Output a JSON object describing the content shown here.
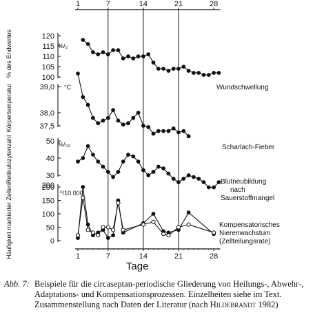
{
  "figure": {
    "x_axis_label": "Tage",
    "top_ticks": [
      "1",
      "7",
      "14",
      "21",
      "28"
    ],
    "bottom_ticks": [
      "1",
      "7",
      "14",
      "21",
      "28"
    ],
    "caption_label": "Abb. 7:",
    "caption_text": "Beispiele für die circaseptan-periodische Gliederung von Heilungs-, Abwehr-, Adaptations- und Kompensationsprozessen. Einzelheiten siehe im Text. Zusammenstellung nach Daten der Literatur (nach ",
    "caption_author": "Hildebrandt",
    "caption_year": "1982)"
  },
  "chart_data": [
    {
      "type": "line",
      "ylabel": "% des Endwertes",
      "unit": "%/₀",
      "yticks": [
        "120",
        "115",
        "110",
        "105",
        "100"
      ],
      "series": [
        {
          "name": "Wundschwellung",
          "x": [
            2,
            3,
            4,
            5,
            6,
            7,
            8,
            9,
            10,
            11,
            12,
            13,
            14,
            15,
            16,
            17,
            18,
            19,
            20,
            21,
            22,
            23,
            24,
            25,
            26,
            27,
            28,
            29
          ],
          "y": [
            118,
            116,
            112,
            111,
            112,
            111,
            113,
            113,
            109,
            110,
            109,
            110,
            110,
            111,
            107,
            104,
            104,
            103,
            104,
            104,
            105,
            103,
            102,
            102,
            101,
            101,
            102,
            102
          ]
        }
      ]
    },
    {
      "type": "line",
      "ylabel": "Körpertemperatur",
      "unit": "°C",
      "yticks": [
        "39,0",
        "38,0",
        "37,5"
      ],
      "series": [
        {
          "name": "Scharlach-Fieber",
          "x": [
            1,
            2,
            3,
            4,
            5,
            6,
            7,
            8,
            9,
            10,
            11,
            12,
            13,
            14,
            15,
            16,
            17,
            18,
            19,
            20,
            21,
            22,
            23
          ],
          "y": [
            39.5,
            38.6,
            38.3,
            37.8,
            37.6,
            37.7,
            37.8,
            38.1,
            37.7,
            37.55,
            37.6,
            37.8,
            38.0,
            37.5,
            37.45,
            37.2,
            37.3,
            37.3,
            37.3,
            37.4,
            37.25,
            37.3,
            37.1
          ]
        }
      ]
    },
    {
      "type": "line",
      "ylabel": "Retikulozytenzahl",
      "unit": "%/₀₀",
      "yticks": [
        "50",
        "40",
        "30"
      ],
      "extra_tick": "200",
      "series": [
        {
          "name": "Blutneubildung nach Sauerstoffmangel",
          "x": [
            1,
            2,
            3,
            4,
            5,
            6,
            7,
            8,
            9,
            10,
            11,
            12,
            13,
            14,
            15,
            16,
            17,
            18,
            19,
            20,
            21,
            22,
            23,
            24,
            25,
            26,
            27,
            28,
            29
          ],
          "y": [
            38,
            40,
            47,
            42,
            38,
            35,
            32,
            29,
            32,
            38,
            42,
            41,
            38,
            33,
            30,
            32,
            35,
            34,
            31,
            28,
            26,
            28,
            30,
            29,
            28,
            26,
            23,
            23,
            26
          ]
        }
      ]
    },
    {
      "type": "line",
      "ylabel": "Häufigkeit markierter Zellen",
      "unit": "⁰/10 000",
      "yticks": [
        "200",
        "150",
        "100",
        "50",
        "0"
      ],
      "series": [
        {
          "name": "Kompensatorisches Nierenwachstum (Zellteilungsrate)",
          "marker": "filled",
          "x": [
            1,
            2,
            3,
            4,
            5,
            6,
            7,
            8,
            9,
            10,
            14,
            16,
            18,
            19,
            21,
            23,
            28
          ],
          "y": [
            10,
            200,
            60,
            20,
            30,
            40,
            10,
            20,
            150,
            30,
            65,
            100,
            35,
            30,
            40,
            105,
            25
          ]
        },
        {
          "marker": "open",
          "x": [
            1,
            2,
            3,
            4,
            5,
            6,
            7,
            8,
            9,
            10,
            14,
            16,
            18,
            19,
            21,
            23,
            28
          ],
          "y": [
            20,
            160,
            40,
            30,
            20,
            50,
            50,
            40,
            140,
            40,
            60,
            70,
            25,
            20,
            50,
            60,
            30
          ]
        }
      ]
    }
  ],
  "colors": {
    "ink": "#111111",
    "background": "#ffffff"
  }
}
